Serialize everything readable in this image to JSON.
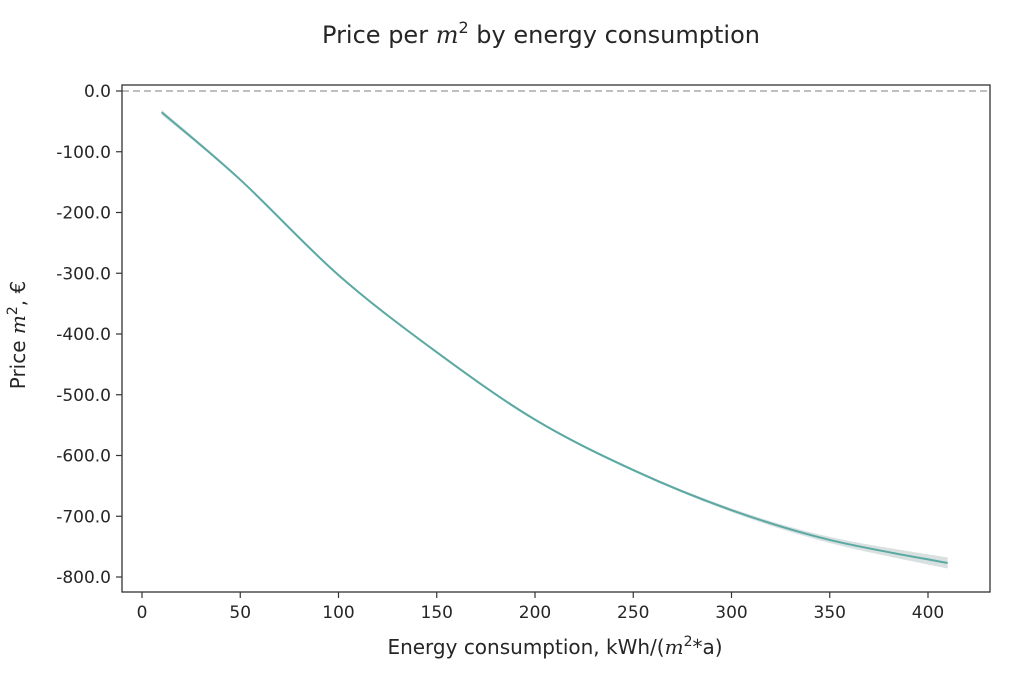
{
  "chart_data": {
    "type": "line",
    "title_parts": {
      "pre": "Price per ",
      "var": "m",
      "sup": "2",
      "post": " by energy consumption"
    },
    "title": "Price per m^2 by energy consumption",
    "xlabel": "Energy consumption, kWh/(m^2*a)",
    "xlabel_parts": {
      "pre": "Energy consumption, kWh/(",
      "var": "m",
      "sup": "2",
      "post": "*a)"
    },
    "ylabel": "Price m^2, €",
    "ylabel_parts": {
      "pre": "Price ",
      "var": "m",
      "sup": "2",
      "post": ", €"
    },
    "xlim": [
      -10,
      430
    ],
    "ylim": [
      -825,
      8
    ],
    "xticks": [
      0,
      50,
      100,
      150,
      200,
      250,
      300,
      350,
      400
    ],
    "xtick_labels": [
      "0",
      "50",
      "100",
      "150",
      "200",
      "250",
      "300",
      "350",
      "400"
    ],
    "yticks": [
      0,
      -100,
      -200,
      -300,
      -400,
      -500,
      -600,
      -700,
      -800
    ],
    "ytick_labels": [
      "0.0",
      "-100.0",
      "-200.0",
      "-300.0",
      "-400.0",
      "-500.0",
      "-600.0",
      "-700.0",
      "-800.0"
    ],
    "reference_line": {
      "y": 0,
      "style": "dashed",
      "color": "#aaaaaa"
    },
    "series": [
      {
        "name": "effect",
        "color": "#5aa9a3",
        "band_color": "#cfd8d8",
        "x": [
          10,
          50,
          100,
          150,
          200,
          250,
          300,
          350,
          410
        ],
        "y": [
          -35,
          -146,
          -303,
          -430,
          -541,
          -624,
          -690,
          -739,
          -777
        ],
        "ci_halfwidth": [
          4,
          2,
          2,
          2,
          2,
          2,
          3,
          5,
          9
        ]
      }
    ],
    "grid": false,
    "legend": "none"
  }
}
